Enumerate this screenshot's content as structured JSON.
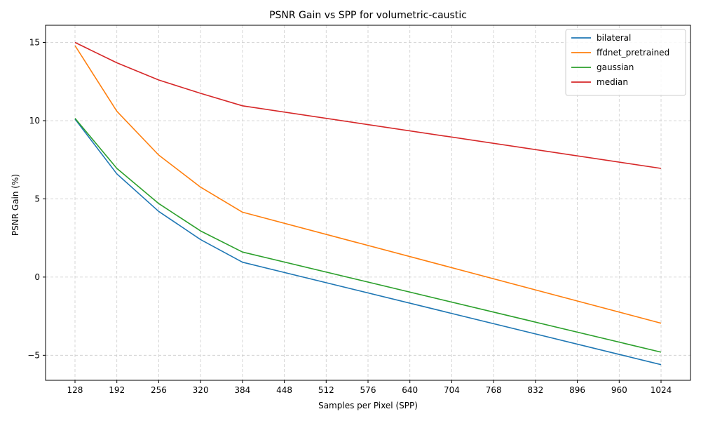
{
  "chart_data": {
    "type": "line",
    "title": "PSNR Gain vs SPP for volumetric-caustic",
    "xlabel": "Samples per Pixel (SPP)",
    "ylabel": "PSNR Gain (%)",
    "x": [
      128,
      192,
      256,
      320,
      384,
      1024
    ],
    "xticks": [
      128,
      192,
      256,
      320,
      384,
      448,
      512,
      576,
      640,
      704,
      768,
      832,
      896,
      960,
      1024
    ],
    "yticks": [
      -5,
      0,
      5,
      10,
      15
    ],
    "xlim": [
      83,
      1069
    ],
    "ylim": [
      -6.6,
      16.1
    ],
    "grid": true,
    "legend_position": "top-right",
    "series": [
      {
        "name": "bilateral",
        "color": "#1f77b4",
        "values": [
          10.1,
          6.6,
          4.2,
          2.4,
          0.95,
          -5.6
        ]
      },
      {
        "name": "ffdnet_pretrained",
        "color": "#ff7f0e",
        "values": [
          14.8,
          10.6,
          7.8,
          5.75,
          4.15,
          -2.95
        ]
      },
      {
        "name": "gaussian",
        "color": "#2ca02c",
        "values": [
          10.15,
          6.95,
          4.7,
          2.95,
          1.6,
          -4.8
        ]
      },
      {
        "name": "median",
        "color": "#d62728",
        "values": [
          15.0,
          13.7,
          12.6,
          11.75,
          10.95,
          6.95
        ]
      }
    ]
  }
}
